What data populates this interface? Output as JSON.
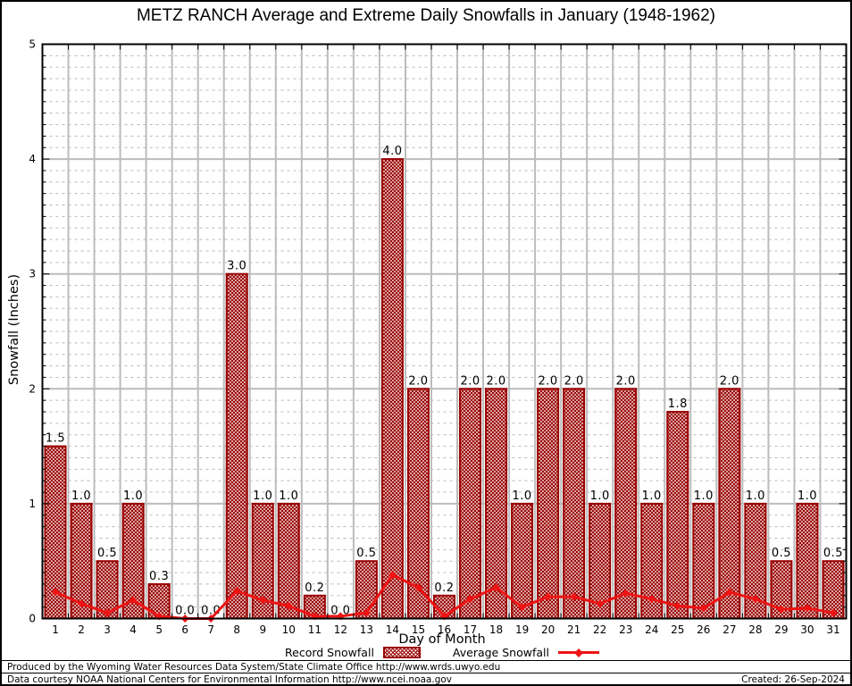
{
  "title": "METZ RANCH Average and Extreme Daily Snowfalls in January (1948-1962)",
  "y_axis_label": "Snowfall (Inches)",
  "x_axis_label": "Day of Month",
  "legend": {
    "record_label": "Record Snowfall",
    "average_label": "Average Snowfall"
  },
  "footer": {
    "line1": "Produced by the Wyoming Water Resources Data System/State Climate Office http://www.wrds.uwyo.edu",
    "line2": "Data courtesy NOAA National Centers for Environmental Information http://www.ncei.noaa.gov",
    "created": "Created: 26-Sep-2024"
  },
  "colors": {
    "bar_border": "#990000",
    "bar_hatch": "#9b0000",
    "line": "#ee1414",
    "grid_major": "#bcbcbc",
    "grid_minor": "#b8b8b8",
    "axis": "#000000",
    "label_text": "#000000"
  },
  "chart_data": {
    "type": "bar",
    "title": "METZ RANCH Average and Extreme Daily Snowfalls in January (1948-1962)",
    "xlabel": "Day of Month",
    "ylabel": "Snowfall (Inches)",
    "ylim": [
      0,
      5
    ],
    "y_major_ticks": [
      0,
      1,
      2,
      3,
      4,
      5
    ],
    "y_minor_step": 0.1,
    "grid": true,
    "legend_position": "bottom",
    "categories": [
      1,
      2,
      3,
      4,
      5,
      6,
      7,
      8,
      9,
      10,
      11,
      12,
      13,
      14,
      15,
      16,
      17,
      18,
      19,
      20,
      21,
      22,
      23,
      24,
      25,
      26,
      27,
      28,
      29,
      30,
      31
    ],
    "series": [
      {
        "name": "Record Snowfall",
        "type": "bar",
        "value_labels_shown": true,
        "values": [
          1.5,
          1.0,
          0.5,
          1.0,
          0.3,
          0.0,
          0.0,
          3.0,
          1.0,
          1.0,
          0.2,
          0.0,
          0.5,
          4.0,
          2.0,
          0.2,
          2.0,
          2.0,
          1.0,
          2.0,
          2.0,
          1.0,
          2.0,
          1.0,
          1.8,
          1.0,
          2.0,
          1.0,
          0.5,
          1.0,
          0.5
        ]
      },
      {
        "name": "Average Snowfall",
        "type": "line",
        "value_labels_shown": false,
        "values": [
          0.23,
          0.13,
          0.05,
          0.16,
          0.02,
          0.0,
          0.0,
          0.24,
          0.16,
          0.11,
          0.02,
          0.02,
          0.05,
          0.38,
          0.27,
          0.02,
          0.17,
          0.27,
          0.1,
          0.19,
          0.19,
          0.13,
          0.22,
          0.17,
          0.11,
          0.09,
          0.23,
          0.17,
          0.08,
          0.09,
          0.05
        ]
      }
    ]
  }
}
